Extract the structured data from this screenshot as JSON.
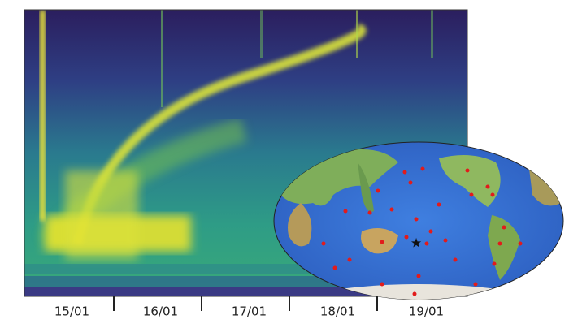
{
  "x_axis": {
    "labels": [
      "15/01",
      "16/01",
      "17/01",
      "18/01",
      "19/01"
    ]
  }
}
